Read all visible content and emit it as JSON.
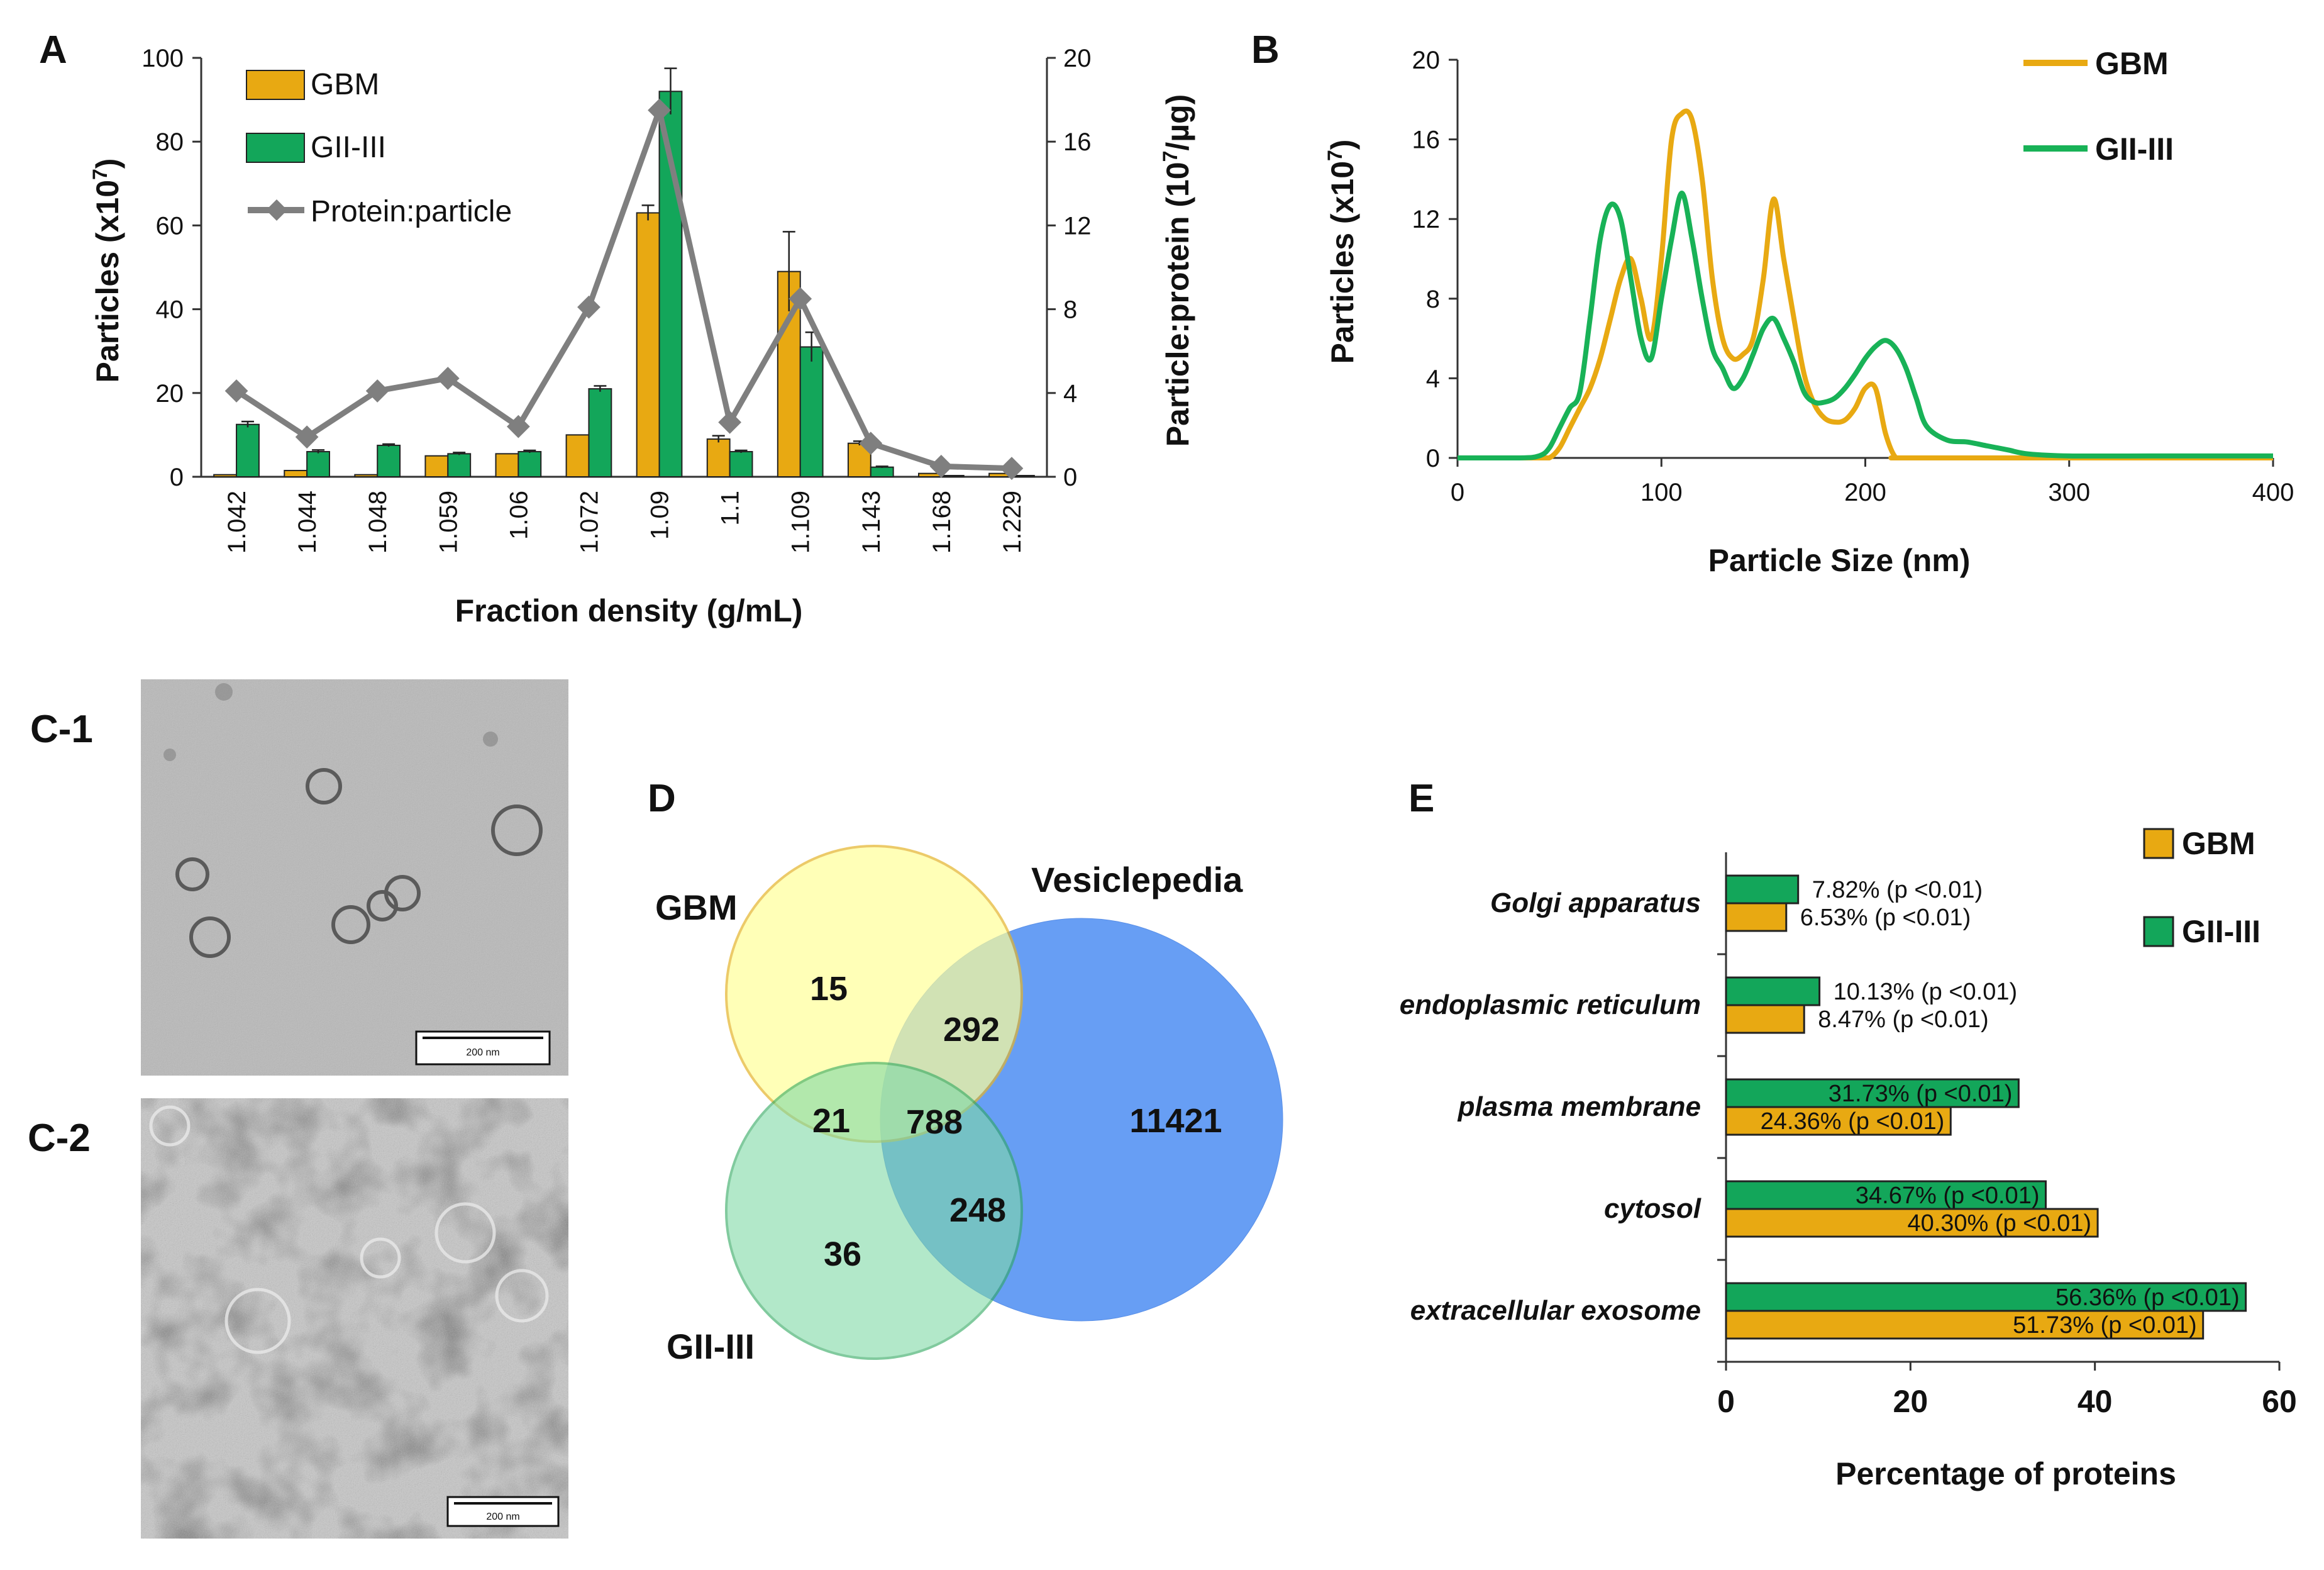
{
  "colors": {
    "gbm": "#E8A912",
    "gii": "#13A65A",
    "gii_line": "#18B257",
    "protein": "#7F7F7F",
    "venn_gbm": "#FFFF99",
    "venn_gii": "#7FD9A6",
    "venn_vesi": "#3D84F2"
  },
  "panels": {
    "A": "A",
    "B": "B",
    "C1": "C-1",
    "C2": "C-2",
    "D": "D",
    "E": "E"
  },
  "chart_data": [
    {
      "id": "A",
      "type": "bar",
      "xlabel": "Fraction density (g/mL)",
      "ylabel_prefix": "Particles (x10",
      "ylabel_exp": "7",
      "ylabel_suffix": ")",
      "y2label_prefix": "Particle:protein (10",
      "y2label_exp": "7",
      "y2label_suffix": "/µg)",
      "categories": [
        "1.042",
        "1.044",
        "1.048",
        "1.059",
        "1.06",
        "1.072",
        "1.09",
        "1.1",
        "1.109",
        "1.143",
        "1.168",
        "1.229"
      ],
      "ylim": [
        0,
        100
      ],
      "yticks": [
        "0",
        "20",
        "40",
        "60",
        "80",
        "100"
      ],
      "y2lim": [
        0,
        20
      ],
      "y2ticks": [
        "0",
        "4",
        "8",
        "12",
        "16",
        "20"
      ],
      "series": [
        {
          "name": "GBM",
          "type": "bar",
          "values": [
            0.5,
            1.5,
            0.5,
            5,
            5.5,
            10,
            63,
            9,
            49,
            8,
            0.8,
            0.8
          ],
          "errors": [
            0,
            0,
            0,
            0,
            0,
            0,
            1.8,
            0.8,
            9.5,
            0.5,
            0,
            0
          ]
        },
        {
          "name": "GII-III",
          "type": "bar",
          "values": [
            12.5,
            6,
            7.5,
            5.5,
            6,
            21,
            92,
            6,
            31,
            2.3,
            0.3,
            0.3
          ],
          "errors": [
            0.7,
            0.4,
            0.3,
            0.3,
            0.3,
            0.7,
            5.5,
            0.3,
            3.5,
            0.2,
            0,
            0
          ]
        },
        {
          "name": "Protein:particle",
          "type": "line",
          "axis": "right",
          "values": [
            4.1,
            1.9,
            4.1,
            4.7,
            2.4,
            8.1,
            17.5,
            2.6,
            8.5,
            1.6,
            0.5,
            0.4
          ]
        }
      ]
    },
    {
      "id": "B",
      "type": "line",
      "xlabel": "Particle Size (nm)",
      "ylabel_prefix": "Particles (x10",
      "ylabel_exp": "7",
      "ylabel_suffix": ")",
      "xlim": [
        0,
        400
      ],
      "xticks": [
        "0",
        "100",
        "200",
        "300",
        "400"
      ],
      "ylim": [
        0,
        20
      ],
      "yticks": [
        "0",
        "4",
        "8",
        "12",
        "16",
        "20"
      ],
      "series": [
        {
          "name": "GBM",
          "x": [
            0,
            40,
            45,
            50,
            55,
            60,
            65,
            70,
            75,
            80,
            85,
            90,
            95,
            100,
            105,
            110,
            115,
            120,
            125,
            130,
            135,
            140,
            145,
            150,
            155,
            160,
            165,
            170,
            175,
            180,
            185,
            190,
            195,
            200,
            205,
            210,
            215,
            220,
            300,
            400
          ],
          "y": [
            0,
            0,
            0,
            0.5,
            1.5,
            2.5,
            3.5,
            5,
            7,
            9,
            10,
            8,
            6,
            10,
            16,
            17.3,
            17,
            14,
            9,
            6,
            5,
            5.2,
            6,
            9,
            13,
            10,
            7,
            4.2,
            2.7,
            2,
            1.8,
            1.9,
            2.5,
            3.5,
            3.5,
            1.2,
            0,
            0,
            0,
            0
          ]
        },
        {
          "name": "GII-III",
          "x": [
            0,
            30,
            40,
            45,
            50,
            55,
            60,
            65,
            70,
            75,
            80,
            85,
            90,
            95,
            100,
            105,
            110,
            115,
            120,
            125,
            130,
            135,
            140,
            145,
            150,
            155,
            160,
            165,
            170,
            175,
            180,
            185,
            190,
            195,
            200,
            205,
            210,
            215,
            220,
            225,
            230,
            240,
            250,
            260,
            270,
            280,
            300,
            340,
            400
          ],
          "y": [
            0,
            0,
            0.1,
            0.5,
            1.5,
            2.5,
            3.3,
            7,
            11,
            12.7,
            12,
            9,
            6,
            5,
            8,
            11,
            13.3,
            11,
            8,
            5.5,
            4.5,
            3.5,
            4,
            5.2,
            6.5,
            7,
            6,
            4.8,
            3.3,
            2.8,
            2.8,
            3,
            3.5,
            4.2,
            5,
            5.6,
            5.9,
            5.5,
            4.5,
            3,
            1.6,
            0.9,
            0.8,
            0.6,
            0.4,
            0.2,
            0.1,
            0.1,
            0.1
          ]
        }
      ]
    },
    {
      "id": "D",
      "type": "venn",
      "sets": [
        "GBM",
        "Vesiclepedia",
        "GII-III"
      ],
      "regions": {
        "gbm_only": "15",
        "gbm_vesi": "292",
        "gbm_gii": "21",
        "all_three": "788",
        "vesi_only": "11421",
        "gii_vesi": "248",
        "gii_only": "36"
      }
    },
    {
      "id": "E",
      "type": "bar",
      "orientation": "horizontal",
      "xlabel": "Percentage of proteins",
      "xlim": [
        0,
        60
      ],
      "xticks": [
        "0",
        "20",
        "40",
        "60"
      ],
      "categories": [
        "Golgi apparatus",
        "endoplasmic reticulum",
        "plasma membrane",
        "cytosol",
        "extracellular exosome"
      ],
      "series": [
        {
          "name": "GII-III",
          "values": [
            7.82,
            10.13,
            31.73,
            34.67,
            56.36
          ],
          "labels": [
            "7.82% (p <0.01)",
            "10.13% (p <0.01)",
            "31.73% (p <0.01)",
            "34.67% (p <0.01)",
            "56.36% (p <0.01)"
          ]
        },
        {
          "name": "GBM",
          "values": [
            6.53,
            8.47,
            24.36,
            40.3,
            51.73
          ],
          "labels": [
            "6.53% (p <0.01)",
            "8.47% (p <0.01)",
            "24.36% (p <0.01)",
            "40.30% (p <0.01)",
            "51.73% (p <0.01)"
          ]
        }
      ]
    }
  ],
  "micrographs": {
    "c1_scale": "200 nm",
    "c2_scale": "200 nm"
  }
}
